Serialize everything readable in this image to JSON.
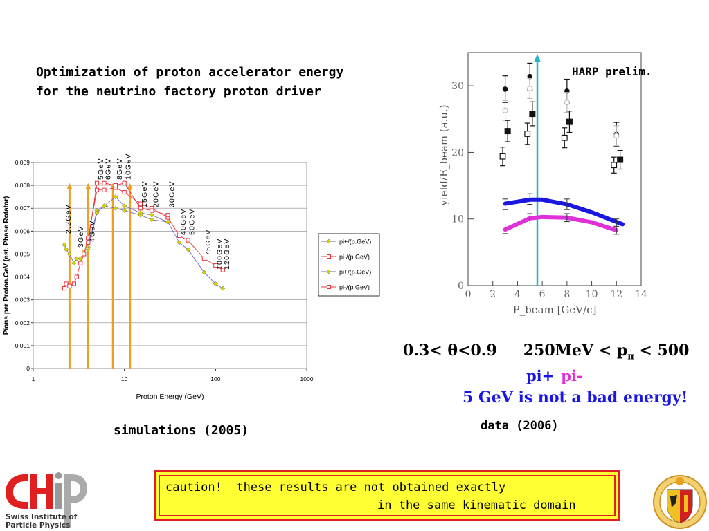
{
  "title_lines": [
    "Optimization of proton accelerator energy",
    "for the neutrino factory proton driver"
  ],
  "simulations_caption": "simulations (2005)",
  "data_caption": "data (2006)",
  "kinematics": {
    "theta_range": "0.3< θ<0.9",
    "p_range_prefix": "250MeV < p",
    "p_sub": "π",
    "p_range_suffix": " < 500"
  },
  "pi_plus_label": "pi+",
  "pi_minus_label": "pi-",
  "conclusion": "5 GeV is not a bad energy!",
  "caution_line1": "caution!  these results are not obtained exactly",
  "caution_line2": "in the same kinematic domain",
  "chipp_logo_lines": [
    "Swiss Institute of",
    "Particle Physics"
  ],
  "colors": {
    "pi_plus_sim": "#d8d400",
    "pi_minus_sim": "#e8323c",
    "harp_blue": "#1a18e0",
    "harp_magenta": "#e030d8",
    "marker_line": "#20b8c8",
    "arrow": "#f0a020"
  },
  "chart_data": [
    {
      "type": "line",
      "ylabel": "Pions per Proton.GeV (est. Phase Rotator)",
      "xlabel": "Proton Energy (GeV)",
      "xscale": "log",
      "xlim": [
        1,
        1000
      ],
      "ylim": [
        0,
        0.009
      ],
      "yticks": [
        "0",
        "0.001",
        "0.002",
        "0.003",
        "0.004",
        "0.005",
        "0.006",
        "0.007",
        "0.008",
        "0.009"
      ],
      "xticks": [
        "1",
        "10",
        "100",
        "1000"
      ],
      "legend_position": "right",
      "series": [
        {
          "name": "pi+/(p.GeV)",
          "color": "#d8d400",
          "marker": "diamond",
          "x": [
            2.2,
            2.3,
            2.5,
            2.8,
            3.0,
            3.3,
            3.6,
            4.0,
            5.0,
            6.0,
            8.0,
            10.0,
            15.0,
            20.0,
            30.0,
            40.0,
            50.0,
            75.0,
            100.0,
            120.0
          ],
          "y": [
            0.0054,
            0.0052,
            0.005,
            0.0046,
            0.0048,
            0.0048,
            0.0051,
            0.0053,
            0.0069,
            0.0071,
            0.007,
            0.0069,
            0.0067,
            0.0065,
            0.0064,
            0.0055,
            0.0052,
            0.0042,
            0.0037,
            0.0035
          ]
        },
        {
          "name": "pi-/(p.GeV)",
          "color": "#e8323c",
          "marker": "square",
          "x": [
            2.2,
            2.3,
            2.5,
            2.8,
            3.0,
            3.3,
            3.6,
            4.0,
            5.0,
            6.0,
            8.0,
            10.0,
            15.0,
            20.0,
            30.0,
            40.0,
            50.0,
            75.0,
            100.0,
            120.0
          ],
          "y": [
            0.0035,
            0.0037,
            0.0036,
            0.0037,
            0.004,
            0.0046,
            0.005,
            0.0057,
            0.0078,
            0.0078,
            0.0079,
            0.0077,
            0.0072,
            0.007,
            0.0066,
            0.0058,
            0.0056,
            0.0048,
            0.0045,
            0.0043
          ]
        },
        {
          "name": "pi+/(p.GeV)",
          "color": "#d8d400",
          "marker": "diamond",
          "x": [
            4.0,
            5.0,
            6.0,
            8.0,
            10.0,
            15.0,
            20.0,
            30.0
          ],
          "y": [
            0.0052,
            0.0068,
            0.0071,
            0.0075,
            0.0071,
            0.0068,
            0.0067,
            0.0064
          ]
        },
        {
          "name": "pi-/(p.GeV)",
          "color": "#e8323c",
          "marker": "square",
          "x": [
            4.0,
            5.0,
            6.0,
            8.0,
            10.0,
            15.0,
            20.0,
            30.0
          ],
          "y": [
            0.0055,
            0.0081,
            0.0081,
            0.008,
            0.0081,
            0.007,
            0.0069,
            0.0067
          ]
        }
      ],
      "energy_annotations": [
        {
          "label": "2.2GeV",
          "x": 2.2
        },
        {
          "label": "3GeV",
          "x": 3.0
        },
        {
          "label": "4GeV",
          "x": 4.0
        },
        {
          "label": "5GeV",
          "x": 5.0
        },
        {
          "label": "6GeV",
          "x": 6.0
        },
        {
          "label": "8GeV",
          "x": 8.0
        },
        {
          "label": "10GeV",
          "x": 10.0
        },
        {
          "label": "15GeV",
          "x": 15.0
        },
        {
          "label": "20GeV",
          "x": 20.0
        },
        {
          "label": "30GeV",
          "x": 30.0
        },
        {
          "label": "40GeV",
          "x": 40.0
        },
        {
          "label": "50GeV",
          "x": 50.0
        },
        {
          "label": "75GeV",
          "x": 75.0
        },
        {
          "label": "100GeV",
          "x": 100.0
        },
        {
          "label": "120GeV",
          "x": 120.0
        }
      ],
      "arrows_at_energy": [
        2.5,
        4.0,
        7.5,
        11.5
      ]
    },
    {
      "type": "scatter",
      "legend_label": "HARP prelim.",
      "xlabel": "P_beam [GeV/c]",
      "ylabel": "yield/E_beam (a.u.)",
      "xlim": [
        0,
        14
      ],
      "ylim": [
        0,
        35
      ],
      "xticks": [
        "0",
        "2",
        "4",
        "6",
        "8",
        "10",
        "12",
        "14"
      ],
      "yticks": [
        "0",
        "10",
        "20",
        "30"
      ],
      "series": [
        {
          "name": "",
          "marker": "filled-circle",
          "x": [
            3,
            5,
            8,
            12
          ],
          "y": [
            29.5,
            31.4,
            29.2,
            22.7
          ],
          "yerr": [
            2.0,
            2.0,
            1.8,
            1.8
          ]
        },
        {
          "name": "",
          "marker": "open-circle",
          "x": [
            3,
            5,
            8,
            12
          ],
          "y": [
            26.3,
            29.6,
            27.5,
            22.5
          ],
          "yerr": [
            1.5,
            1.5,
            1.5,
            1.5
          ]
        },
        {
          "name": "",
          "marker": "filled-square",
          "x": [
            3.2,
            5.2,
            8.2,
            12.3
          ],
          "y": [
            23.2,
            25.8,
            24.6,
            18.9
          ],
          "yerr": [
            1.6,
            1.8,
            1.6,
            1.4
          ]
        },
        {
          "name": "",
          "marker": "open-square",
          "x": [
            2.8,
            4.8,
            7.8,
            11.8
          ],
          "y": [
            19.4,
            22.8,
            22.2,
            18.1
          ],
          "yerr": [
            1.4,
            1.6,
            1.5,
            1.2
          ]
        }
      ],
      "curves": [
        {
          "name": "pi+",
          "color": "#1a18e0",
          "x": [
            3,
            5,
            6,
            8,
            10,
            12.5
          ],
          "y": [
            12.3,
            12.9,
            12.9,
            12.2,
            11.0,
            9.2
          ]
        },
        {
          "name": "pi-",
          "color": "#e030d8",
          "x": [
            3,
            5,
            6,
            8,
            10,
            12
          ],
          "y": [
            8.4,
            10.1,
            10.3,
            10.2,
            9.5,
            8.3
          ]
        }
      ],
      "curve_points": [
        {
          "x": [
            3,
            5,
            8,
            12
          ],
          "y": [
            12.2,
            13.0,
            12.2,
            9.4
          ],
          "yerr": [
            0.8,
            0.8,
            0.8,
            0.6
          ]
        },
        {
          "x": [
            3,
            5,
            8,
            12
          ],
          "y": [
            8.6,
            10.1,
            10.2,
            8.3
          ],
          "yerr": [
            0.8,
            0.7,
            0.6,
            0.6
          ]
        }
      ],
      "vertical_marker_x": 5.6
    }
  ]
}
